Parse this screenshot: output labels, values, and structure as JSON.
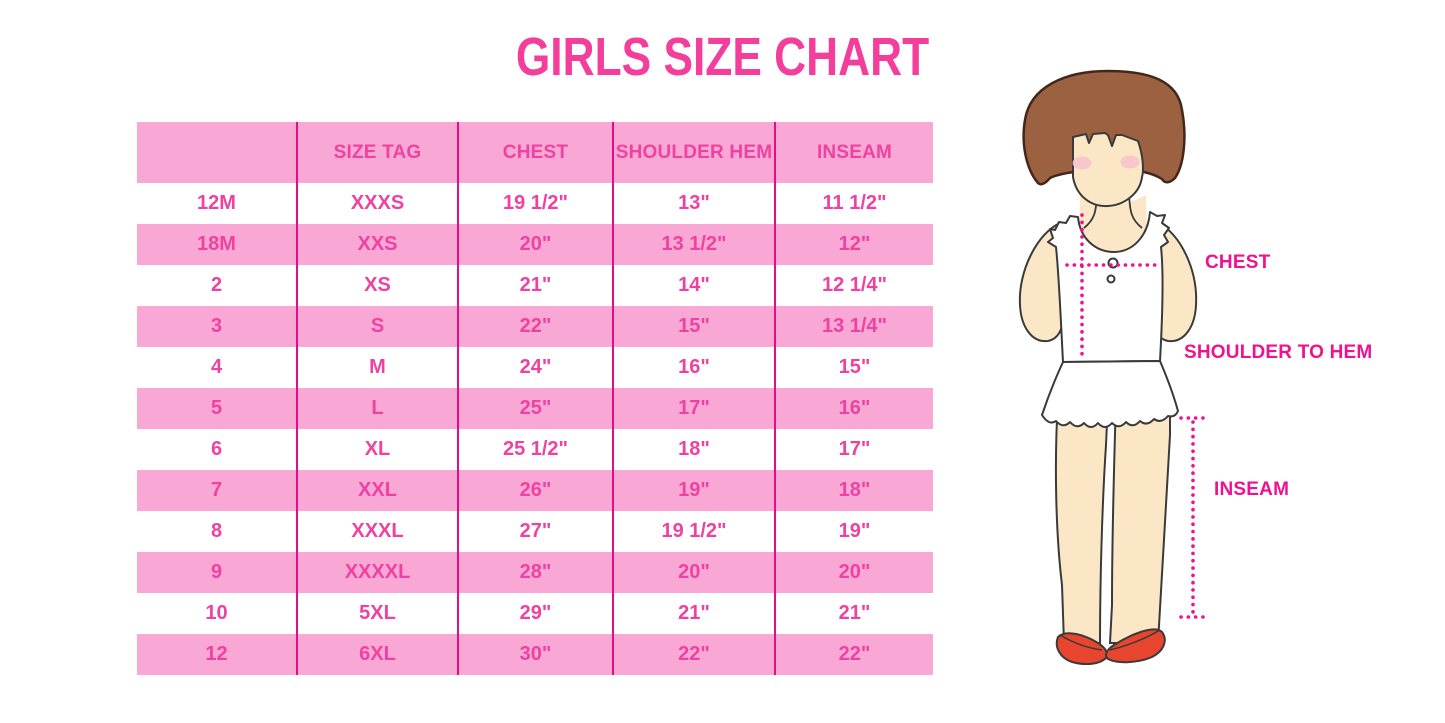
{
  "title": "GIRLS SIZE CHART",
  "table": {
    "headers": [
      "",
      "SIZE TAG",
      "CHEST",
      "SHOULDER HEM",
      "INSEAM"
    ],
    "rows": [
      [
        "12M",
        "XXXS",
        "19 1/2\"",
        "13\"",
        "11 1/2\""
      ],
      [
        "18M",
        "XXS",
        "20\"",
        "13 1/2\"",
        "12\""
      ],
      [
        "2",
        "XS",
        "21\"",
        "14\"",
        "12 1/4\""
      ],
      [
        "3",
        "S",
        "22\"",
        "15\"",
        "13 1/4\""
      ],
      [
        "4",
        "M",
        "24\"",
        "16\"",
        "15\""
      ],
      [
        "5",
        "L",
        "25\"",
        "17\"",
        "16\""
      ],
      [
        "6",
        "XL",
        "25 1/2\"",
        "18\"",
        "17\""
      ],
      [
        "7",
        "XXL",
        "26\"",
        "19\"",
        "18\""
      ],
      [
        "8",
        "XXXL",
        "27\"",
        "19 1/2\"",
        "19\""
      ],
      [
        "9",
        "XXXXL",
        "28\"",
        "20\"",
        "20\""
      ],
      [
        "10",
        "5XL",
        "29\"",
        "21\"",
        "21\""
      ],
      [
        "12",
        "6XL",
        "30\"",
        "22\"",
        "22\""
      ]
    ]
  },
  "figure": {
    "illustration": "cartoon girl with dotted measurement guides",
    "labels": {
      "chest": "CHEST",
      "shoulder_to_hem": "SHOULDER TO HEM",
      "inseam": "INSEAM"
    }
  },
  "colors": {
    "title_pink": "#F33E9C",
    "table_text_pink": "#EF42A0",
    "row_pink": "#F9A8D5",
    "divider_magenta": "#E00F86",
    "label_magenta": "#EE1290",
    "hair_brown": "#9C6141",
    "skin": "#FBE7C5",
    "blush": "#F5C3CB",
    "shoe_red": "#E8452E"
  }
}
